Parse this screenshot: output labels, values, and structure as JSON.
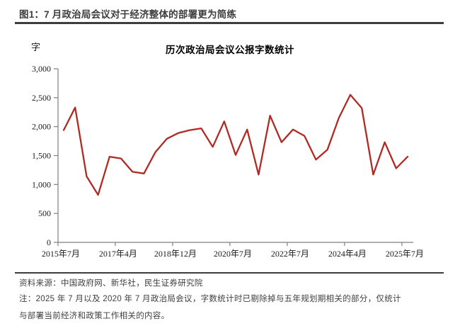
{
  "header": {
    "title": "图1：7 月政治局会议对于经济整体的部署更为简练"
  },
  "chart": {
    "unit_label": "字",
    "title": "历次政治局会议公报字数统计"
  },
  "chart_data": {
    "type": "line",
    "title": "历次政治局会议公报字数统计",
    "ylabel": "字",
    "ylim": [
      0,
      3000
    ],
    "y_ticks": [
      0,
      500,
      1000,
      1500,
      2000,
      2500,
      3000
    ],
    "y_tick_labels": [
      "0",
      "500",
      "1,000",
      "1,500",
      "2,000",
      "2,500",
      "3,000"
    ],
    "x_tick_labels": [
      "2015年7月",
      "2017年4月",
      "2018年12月",
      "2020年7月",
      "2022年7月",
      "2024年4月",
      "2025年7月"
    ],
    "x_tick_indices": [
      0,
      5,
      10,
      15,
      20,
      25,
      30
    ],
    "grid": false,
    "legend_position": "none",
    "line_color": "#b02a23",
    "axis_color": "#7f7f7f",
    "series": [
      {
        "name": "字数",
        "values": [
          1940,
          2330,
          1140,
          820,
          1480,
          1450,
          1220,
          1190,
          1560,
          1790,
          1890,
          1940,
          1970,
          1650,
          2090,
          1510,
          1950,
          1170,
          2190,
          1730,
          1950,
          1840,
          1430,
          1600,
          2150,
          2550,
          2320,
          1170,
          1730,
          1280,
          1480
        ]
      }
    ]
  },
  "footer": {
    "source": "资料来源：中国政府网、新华社，民生证券研究院",
    "note_lines": [
      "注：2025 年 7 月以及 2020 年 7 月政治局会议，字数统计时已剔除掉与五年规划期相关的部分，仅统计",
      "与部署当前经济和政策工作相关的内容。"
    ]
  }
}
